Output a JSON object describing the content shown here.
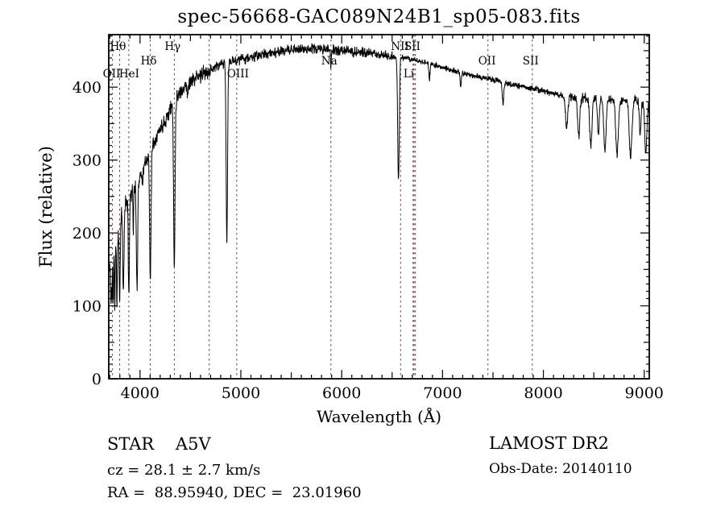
{
  "title": "spec-56668-GAC089N24B1_sp05-083.fits",
  "footer": {
    "left": {
      "classification": "STAR    A5V",
      "cz": "cz = 28.1 ± 2.7 km/s",
      "radec": "RA =  88.95940, DEC =  23.01960"
    },
    "right": {
      "survey": "LAMOST DR2",
      "obs_date": "Obs-Date: 20140110"
    }
  },
  "chart_data": {
    "type": "line",
    "xlabel": "Wavelength (Å)",
    "ylabel": "Flux (relative)",
    "xlim": [
      3690,
      9050
    ],
    "ylim": [
      0,
      472
    ],
    "x_major_ticks": [
      4000,
      5000,
      6000,
      7000,
      8000,
      9000
    ],
    "y_major_ticks": [
      0,
      100,
      200,
      300,
      400
    ],
    "x_minor_step": 100,
    "y_minor_step": 10,
    "grid": false,
    "legend": "none",
    "line_color": "#000000",
    "marker_line_color": "#6f3f3f",
    "frame_color": "#000000",
    "line_markers": [
      {
        "label": "OII",
        "wavelength": 3727,
        "row": "low"
      },
      {
        "label": "Hθ",
        "wavelength": 3798,
        "row": "top"
      },
      {
        "label": "HeI",
        "wavelength": 3889,
        "row": "low"
      },
      {
        "label": "Hδ",
        "wavelength": 4102,
        "row": "mid"
      },
      {
        "label": "Hγ",
        "wavelength": 4340,
        "row": "top"
      },
      {
        "label": "",
        "wavelength": 4686,
        "row": "low"
      },
      {
        "label": "OIII",
        "wavelength": 4959,
        "row": "low"
      },
      {
        "label": "Na",
        "wavelength": 5893,
        "row": "mid"
      },
      {
        "label": "NII",
        "wavelength": 6584,
        "row": "top"
      },
      {
        "label": "Li",
        "wavelength": 6708,
        "row": "low"
      },
      {
        "label": "SII",
        "wavelength": 6717,
        "row": "top"
      },
      {
        "label": "",
        "wavelength": 6731,
        "row": "top"
      },
      {
        "label": "OII",
        "wavelength": 7450,
        "row": "mid"
      },
      {
        "label": "SII",
        "wavelength": 7890,
        "row": "mid"
      }
    ],
    "series": [
      {
        "name": "spectrum",
        "sample_step_angstrom": 2.5,
        "random_seed": 11,
        "continuum_anchors": [
          [
            3695,
            150
          ],
          [
            3720,
            165
          ],
          [
            3750,
            185
          ],
          [
            3780,
            200
          ],
          [
            3820,
            225
          ],
          [
            3870,
            245
          ],
          [
            3920,
            258
          ],
          [
            3970,
            268
          ],
          [
            4020,
            285
          ],
          [
            4080,
            305
          ],
          [
            4150,
            330
          ],
          [
            4250,
            355
          ],
          [
            4350,
            385
          ],
          [
            4450,
            402
          ],
          [
            4550,
            412
          ],
          [
            4650,
            420
          ],
          [
            4750,
            428
          ],
          [
            4850,
            433
          ],
          [
            4950,
            437
          ],
          [
            5100,
            441
          ],
          [
            5300,
            447
          ],
          [
            5500,
            451
          ],
          [
            5700,
            453
          ],
          [
            5900,
            451
          ],
          [
            6100,
            449
          ],
          [
            6300,
            446
          ],
          [
            6500,
            442
          ],
          [
            6700,
            438
          ],
          [
            6900,
            431
          ],
          [
            7100,
            423
          ],
          [
            7300,
            416
          ],
          [
            7500,
            410
          ],
          [
            7700,
            403
          ],
          [
            7900,
            398
          ],
          [
            8100,
            391
          ],
          [
            8300,
            386
          ],
          [
            8500,
            384
          ],
          [
            8700,
            382
          ],
          [
            8900,
            383
          ],
          [
            9040,
            376
          ]
        ],
        "absorption_features": [
          [
            3712,
            55,
            5
          ],
          [
            3722,
            60,
            4
          ],
          [
            3734,
            75,
            5
          ],
          [
            3750,
            85,
            5
          ],
          [
            3771,
            95,
            6
          ],
          [
            3798,
            105,
            7
          ],
          [
            3835,
            115,
            8
          ],
          [
            3889,
            130,
            8
          ],
          [
            3934,
            55,
            5
          ],
          [
            3970,
            150,
            9
          ],
          [
            4026,
            25,
            5
          ],
          [
            4102,
            175,
            10
          ],
          [
            4340,
            228,
            10
          ],
          [
            4471,
            20,
            5
          ],
          [
            4861,
            245,
            10
          ],
          [
            5893,
            22,
            5
          ],
          [
            6563,
            170,
            11
          ],
          [
            6870,
            22,
            8
          ],
          [
            7180,
            18,
            8
          ],
          [
            7600,
            30,
            10
          ],
          [
            8230,
            45,
            15
          ],
          [
            8350,
            55,
            15
          ],
          [
            8470,
            65,
            16
          ],
          [
            8545,
            50,
            12
          ],
          [
            8610,
            70,
            16
          ],
          [
            8730,
            75,
            18
          ],
          [
            8865,
            80,
            18
          ],
          [
            8960,
            45,
            12
          ],
          [
            9015,
            70,
            14
          ]
        ],
        "noise_amp_by_region": [
          [
            4000,
            16
          ],
          [
            4700,
            13
          ],
          [
            6500,
            8.5
          ],
          [
            8200,
            5
          ],
          [
            9050,
            8
          ]
        ]
      }
    ]
  }
}
